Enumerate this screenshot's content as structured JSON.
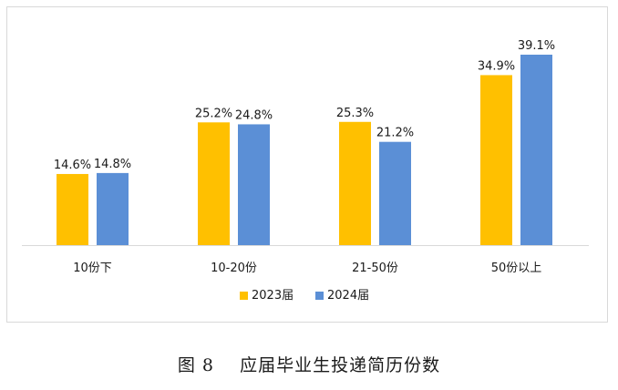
{
  "caption": "图 8    应届毕业生投递简历份数",
  "chart_data": {
    "type": "bar",
    "categories": [
      "10份下",
      "10-20份",
      "21-50份",
      "50份以上"
    ],
    "series": [
      {
        "name": "2023届",
        "values": [
          14.6,
          25.2,
          25.3,
          34.9
        ],
        "color": "#FFC000"
      },
      {
        "name": "2024届",
        "values": [
          14.8,
          24.8,
          21.2,
          39.1
        ],
        "color": "#5B8FD6"
      }
    ],
    "value_suffix": "%",
    "ylim": [
      0,
      39.1
    ],
    "grid": false,
    "legend_position": "bottom",
    "axis_color": "#d9d9d9"
  }
}
